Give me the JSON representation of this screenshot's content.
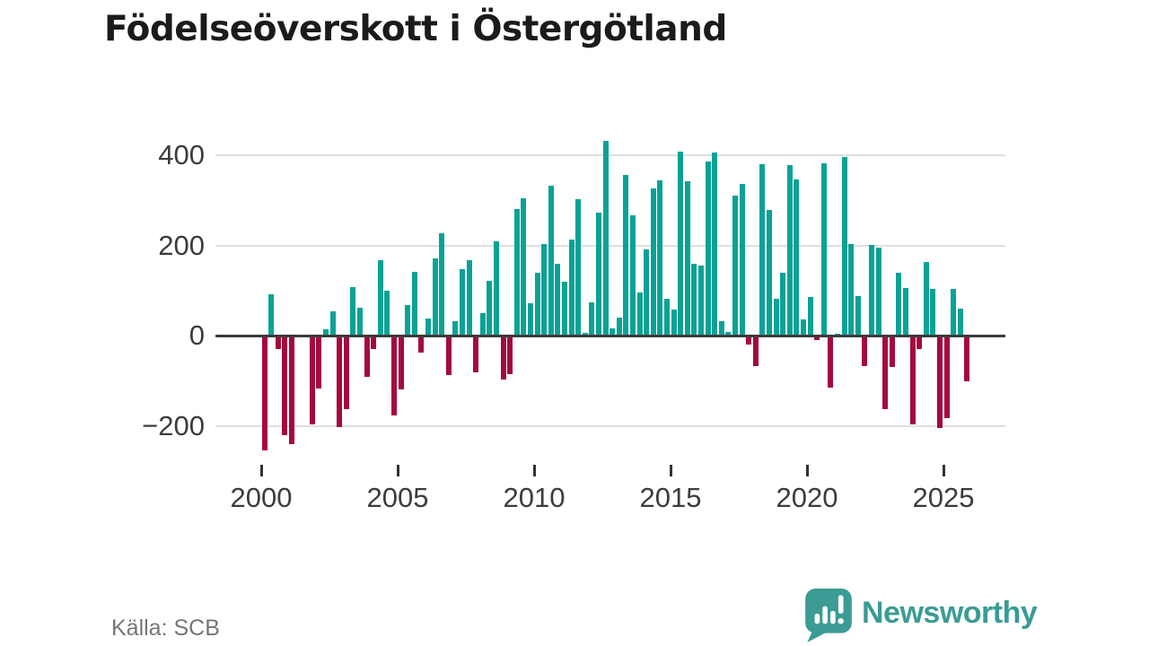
{
  "header": {
    "title": "Födelseöverskott i Östergötland"
  },
  "footer": {
    "source": "Källa: SCB",
    "brand": "Newsworthy"
  },
  "chart_data": {
    "type": "bar",
    "title": "Födelseöverskott i Östergötland",
    "source": "Källa: SCB",
    "bars_per_year": 4,
    "grid": "horizontal",
    "legend": "none",
    "x_ticks": [
      "2000",
      "2005",
      "2010",
      "2015",
      "2020",
      "2025"
    ],
    "y_ticks": [
      "400",
      "200",
      "0",
      "−200"
    ],
    "y_tick_values": [
      400,
      200,
      0,
      -200
    ],
    "ylim": [
      -270,
      460
    ],
    "colors": {
      "positive_bar": "#0aa296",
      "negative_bar": "#a4093d",
      "zero_axis": "#3b3b3b",
      "gridline": "#e0e0e0",
      "brand_teal": "#3a9c94"
    },
    "series": [
      {
        "year": 2000,
        "quarters": [
          -255,
          92,
          -30,
          -220
        ]
      },
      {
        "year": 2001,
        "quarters": [
          -240,
          0,
          0,
          -198
        ]
      },
      {
        "year": 2002,
        "quarters": [
          -117,
          13,
          53,
          -203
        ]
      },
      {
        "year": 2003,
        "quarters": [
          -163,
          108,
          62,
          -92
        ]
      },
      {
        "year": 2004,
        "quarters": [
          -29,
          168,
          100,
          -177
        ]
      },
      {
        "year": 2005,
        "quarters": [
          -120,
          68,
          142,
          -37
        ]
      },
      {
        "year": 2006,
        "quarters": [
          37,
          172,
          227,
          -87
        ]
      },
      {
        "year": 2007,
        "quarters": [
          32,
          148,
          167,
          -81
        ]
      },
      {
        "year": 2008,
        "quarters": [
          50,
          121,
          208,
          -97
        ]
      },
      {
        "year": 2009,
        "quarters": [
          -85,
          281,
          305,
          72
        ]
      },
      {
        "year": 2010,
        "quarters": [
          139,
          203,
          333,
          159
        ]
      },
      {
        "year": 2011,
        "quarters": [
          119,
          212,
          302,
          5
        ]
      },
      {
        "year": 2012,
        "quarters": [
          73,
          273,
          432,
          15
        ]
      },
      {
        "year": 2013,
        "quarters": [
          40,
          357,
          267,
          95
        ]
      },
      {
        "year": 2014,
        "quarters": [
          191,
          327,
          345,
          81
        ]
      },
      {
        "year": 2015,
        "quarters": [
          58,
          408,
          343,
          159
        ]
      },
      {
        "year": 2016,
        "quarters": [
          155,
          387,
          405,
          32
        ]
      },
      {
        "year": 2017,
        "quarters": [
          8,
          310,
          337,
          -20
        ]
      },
      {
        "year": 2018,
        "quarters": [
          -67,
          381,
          278,
          81
        ]
      },
      {
        "year": 2019,
        "quarters": [
          140,
          378,
          347,
          35
        ]
      },
      {
        "year": 2020,
        "quarters": [
          85,
          -10,
          382,
          -115
        ]
      },
      {
        "year": 2021,
        "quarters": [
          4,
          397,
          203,
          87
        ]
      },
      {
        "year": 2022,
        "quarters": [
          -67,
          201,
          195,
          -163
        ]
      },
      {
        "year": 2023,
        "quarters": [
          -69,
          139,
          105,
          -197
        ]
      },
      {
        "year": 2024,
        "quarters": [
          -30,
          163,
          103,
          -205
        ]
      },
      {
        "year": 2025,
        "quarters": [
          -183,
          103,
          59,
          -102
        ]
      }
    ]
  }
}
